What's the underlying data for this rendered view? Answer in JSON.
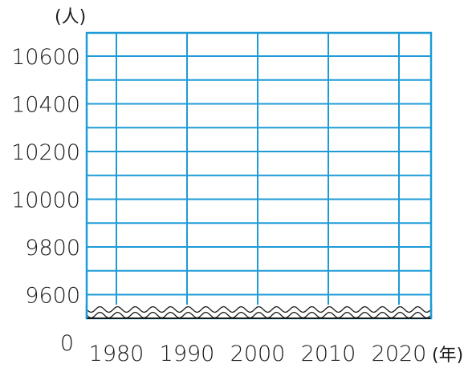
{
  "chart_data": {
    "type": "line",
    "title": "",
    "ylabel": "(人)",
    "xlabel": "(年)",
    "x_ticks": [
      "1980",
      "1990",
      "2000",
      "2010",
      "2020"
    ],
    "y_ticks": [
      "10600",
      "10400",
      "10200",
      "10000",
      "9800",
      "9600"
    ],
    "y_zero_label": "0",
    "xlim": [
      1976,
      2024
    ],
    "ylim": [
      9560,
      10700
    ],
    "y_axis_break": true,
    "grid": true,
    "series": [],
    "colors": {
      "grid": "#1e9bd7",
      "text": "#1a1a1a",
      "break": "#1a1a1a"
    }
  }
}
